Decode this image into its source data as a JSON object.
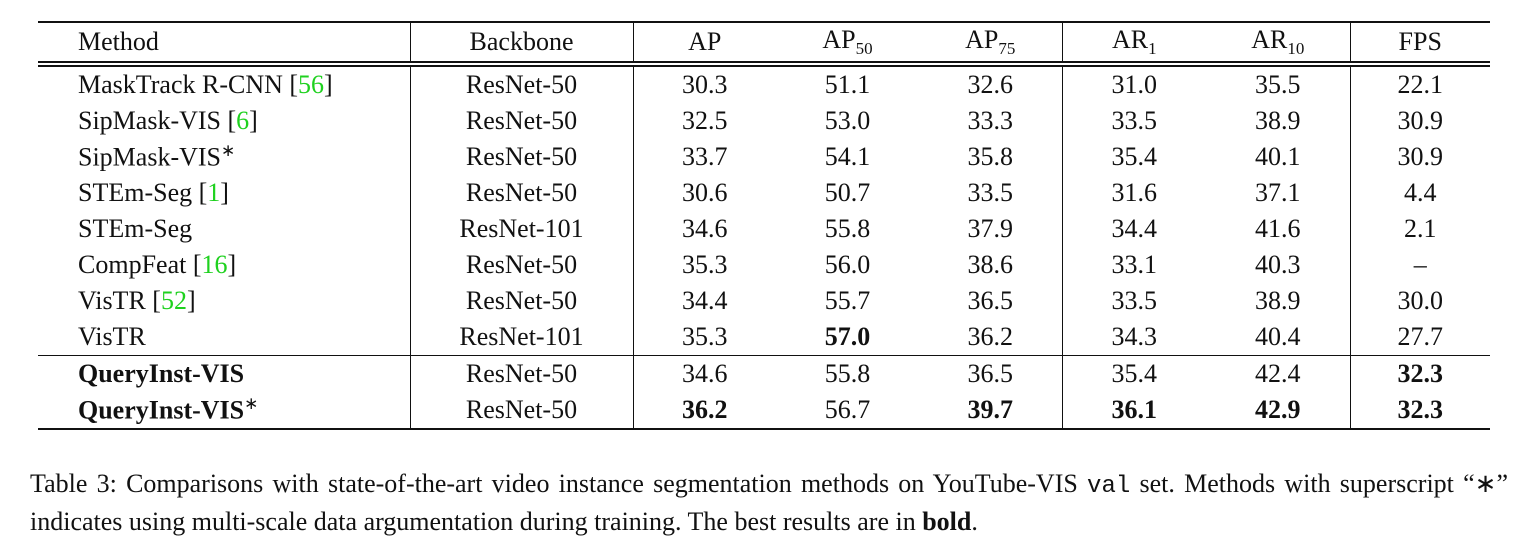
{
  "table": {
    "header": [
      {
        "text": "Method"
      },
      {
        "text": "Backbone"
      },
      {
        "text": "AP"
      },
      {
        "text": "AP",
        "sub": "50"
      },
      {
        "text": "AP",
        "sub": "75"
      },
      {
        "text": "AR",
        "sub": "1"
      },
      {
        "text": "AR",
        "sub": "10"
      },
      {
        "text": "FPS"
      }
    ],
    "groups": [
      [
        {
          "method": {
            "text": "MaskTrack R-CNN [",
            "cite": "56",
            "end": "]"
          },
          "cells": [
            "ResNet-50",
            "30.3",
            "51.1",
            "32.6",
            "31.0",
            "35.5",
            "22.1"
          ],
          "bold": []
        },
        {
          "method": {
            "text": "SipMask-VIS [",
            "cite": "6",
            "end": "]"
          },
          "cells": [
            "ResNet-50",
            "32.5",
            "53.0",
            "33.3",
            "33.5",
            "38.9",
            "30.9"
          ],
          "bold": []
        },
        {
          "method": {
            "text": "SipMask-VIS",
            "sup": "∗"
          },
          "cells": [
            "ResNet-50",
            "33.7",
            "54.1",
            "35.8",
            "35.4",
            "40.1",
            "30.9"
          ],
          "bold": []
        },
        {
          "method": {
            "text": "STEm-Seg [",
            "cite": "1",
            "end": "]"
          },
          "cells": [
            "ResNet-50",
            "30.6",
            "50.7",
            "33.5",
            "31.6",
            "37.1",
            "4.4"
          ],
          "bold": []
        },
        {
          "method": {
            "text": "STEm-Seg"
          },
          "cells": [
            "ResNet-101",
            "34.6",
            "55.8",
            "37.9",
            "34.4",
            "41.6",
            "2.1"
          ],
          "bold": []
        },
        {
          "method": {
            "text": "CompFeat [",
            "cite": "16",
            "end": "]"
          },
          "cells": [
            "ResNet-50",
            "35.3",
            "56.0",
            "38.6",
            "33.1",
            "40.3",
            "–"
          ],
          "bold": []
        },
        {
          "method": {
            "text": "VisTR [",
            "cite": "52",
            "end": "]"
          },
          "cells": [
            "ResNet-50",
            "34.4",
            "55.7",
            "36.5",
            "33.5",
            "38.9",
            "30.0"
          ],
          "bold": []
        },
        {
          "method": {
            "text": "VisTR"
          },
          "cells": [
            "ResNet-101",
            "35.3",
            "57.0",
            "36.2",
            "34.3",
            "40.4",
            "27.7"
          ],
          "bold": [
            2
          ]
        }
      ],
      [
        {
          "method": {
            "text": "QueryInst-VIS"
          },
          "method_bold": true,
          "cells": [
            "ResNet-50",
            "34.6",
            "55.8",
            "36.5",
            "35.4",
            "42.4",
            "32.3"
          ],
          "bold": [
            6
          ]
        },
        {
          "method": {
            "text": "QueryInst-VIS",
            "sup": "∗"
          },
          "method_bold": true,
          "cells": [
            "ResNet-50",
            "36.2",
            "56.7",
            "39.7",
            "36.1",
            "42.9",
            "32.3"
          ],
          "bold": [
            1,
            3,
            4,
            5,
            6
          ]
        }
      ]
    ]
  },
  "caption": [
    {
      "text": "Table 3: Comparisons with state-of-the-art video instance segmentation methods on YouTube-VIS "
    },
    {
      "text": "val",
      "style": "mono"
    },
    {
      "text": " set. Methods with superscript “∗” indicates using multi-scale data argumentation during training. The best results are in "
    },
    {
      "text": "bold",
      "style": "bold"
    },
    {
      "text": "."
    }
  ]
}
